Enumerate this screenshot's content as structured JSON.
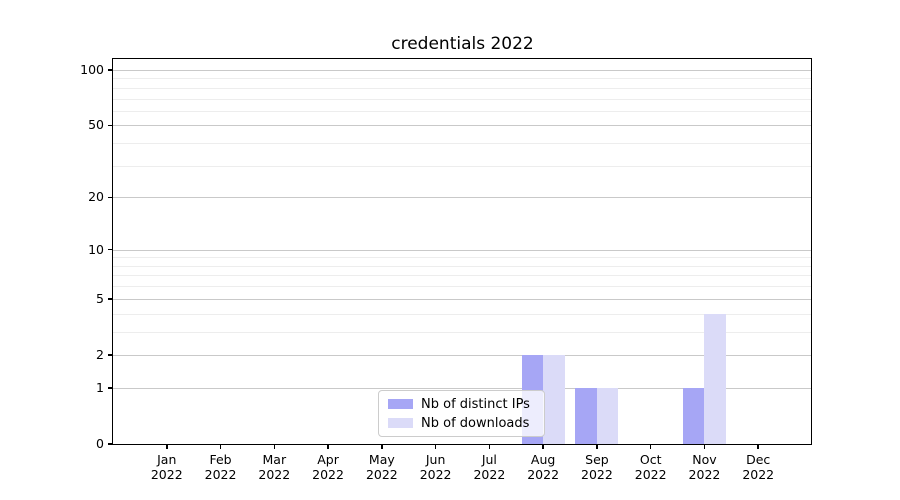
{
  "chart_data": {
    "type": "bar",
    "title": "credentials 2022",
    "categories": [
      "Jan",
      "Feb",
      "Mar",
      "Apr",
      "May",
      "Jun",
      "Jul",
      "Aug",
      "Sep",
      "Oct",
      "Nov",
      "Dec"
    ],
    "category_year": "2022",
    "series": [
      {
        "name": "Nb of distinct IPs",
        "color": "#a6a6f5",
        "values": [
          0,
          0,
          0,
          0,
          0,
          0,
          0,
          2,
          1,
          0,
          1,
          0
        ]
      },
      {
        "name": "Nb of downloads",
        "color": "#dbdbf8",
        "values": [
          0,
          0,
          0,
          0,
          0,
          0,
          0,
          2,
          1,
          0,
          4,
          0
        ]
      }
    ],
    "xlabel": "",
    "ylabel": "",
    "yscale": "log1p",
    "ylim": [
      0,
      120
    ],
    "ytick_values": [
      0,
      1,
      2,
      5,
      10,
      20,
      50,
      100
    ],
    "ytick_labels": [
      "0",
      "1",
      "2",
      "5",
      "10",
      "20",
      "50",
      "100"
    ],
    "yminor_values": [
      3,
      4,
      6,
      7,
      8,
      9,
      30,
      40,
      60,
      70,
      80,
      90
    ],
    "grid": "horizontal",
    "legend_position": "lower center-left inside plot",
    "colors": {
      "major_grid": "#c9c9c9",
      "minor_grid": "#ededed",
      "spine": "#000000",
      "text": "#000000",
      "background": "#ffffff"
    }
  }
}
